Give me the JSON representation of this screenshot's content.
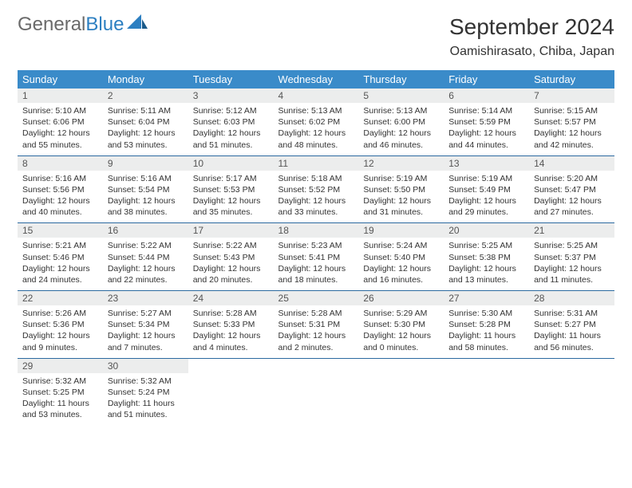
{
  "logo": {
    "word1": "General",
    "word2": "Blue"
  },
  "title": "September 2024",
  "location": "Oamishirasato, Chiba, Japan",
  "colors": {
    "header_bg": "#3a8bc9",
    "header_text": "#ffffff",
    "daynum_bg": "#eceded",
    "border": "#2c6aa0",
    "logo_gray": "#6a6a6a",
    "logo_blue": "#2c7fc1"
  },
  "weekdays": [
    "Sunday",
    "Monday",
    "Tuesday",
    "Wednesday",
    "Thursday",
    "Friday",
    "Saturday"
  ],
  "weeks": [
    [
      {
        "n": "1",
        "sr": "Sunrise: 5:10 AM",
        "ss": "Sunset: 6:06 PM",
        "dl": "Daylight: 12 hours and 55 minutes."
      },
      {
        "n": "2",
        "sr": "Sunrise: 5:11 AM",
        "ss": "Sunset: 6:04 PM",
        "dl": "Daylight: 12 hours and 53 minutes."
      },
      {
        "n": "3",
        "sr": "Sunrise: 5:12 AM",
        "ss": "Sunset: 6:03 PM",
        "dl": "Daylight: 12 hours and 51 minutes."
      },
      {
        "n": "4",
        "sr": "Sunrise: 5:13 AM",
        "ss": "Sunset: 6:02 PM",
        "dl": "Daylight: 12 hours and 48 minutes."
      },
      {
        "n": "5",
        "sr": "Sunrise: 5:13 AM",
        "ss": "Sunset: 6:00 PM",
        "dl": "Daylight: 12 hours and 46 minutes."
      },
      {
        "n": "6",
        "sr": "Sunrise: 5:14 AM",
        "ss": "Sunset: 5:59 PM",
        "dl": "Daylight: 12 hours and 44 minutes."
      },
      {
        "n": "7",
        "sr": "Sunrise: 5:15 AM",
        "ss": "Sunset: 5:57 PM",
        "dl": "Daylight: 12 hours and 42 minutes."
      }
    ],
    [
      {
        "n": "8",
        "sr": "Sunrise: 5:16 AM",
        "ss": "Sunset: 5:56 PM",
        "dl": "Daylight: 12 hours and 40 minutes."
      },
      {
        "n": "9",
        "sr": "Sunrise: 5:16 AM",
        "ss": "Sunset: 5:54 PM",
        "dl": "Daylight: 12 hours and 38 minutes."
      },
      {
        "n": "10",
        "sr": "Sunrise: 5:17 AM",
        "ss": "Sunset: 5:53 PM",
        "dl": "Daylight: 12 hours and 35 minutes."
      },
      {
        "n": "11",
        "sr": "Sunrise: 5:18 AM",
        "ss": "Sunset: 5:52 PM",
        "dl": "Daylight: 12 hours and 33 minutes."
      },
      {
        "n": "12",
        "sr": "Sunrise: 5:19 AM",
        "ss": "Sunset: 5:50 PM",
        "dl": "Daylight: 12 hours and 31 minutes."
      },
      {
        "n": "13",
        "sr": "Sunrise: 5:19 AM",
        "ss": "Sunset: 5:49 PM",
        "dl": "Daylight: 12 hours and 29 minutes."
      },
      {
        "n": "14",
        "sr": "Sunrise: 5:20 AM",
        "ss": "Sunset: 5:47 PM",
        "dl": "Daylight: 12 hours and 27 minutes."
      }
    ],
    [
      {
        "n": "15",
        "sr": "Sunrise: 5:21 AM",
        "ss": "Sunset: 5:46 PM",
        "dl": "Daylight: 12 hours and 24 minutes."
      },
      {
        "n": "16",
        "sr": "Sunrise: 5:22 AM",
        "ss": "Sunset: 5:44 PM",
        "dl": "Daylight: 12 hours and 22 minutes."
      },
      {
        "n": "17",
        "sr": "Sunrise: 5:22 AM",
        "ss": "Sunset: 5:43 PM",
        "dl": "Daylight: 12 hours and 20 minutes."
      },
      {
        "n": "18",
        "sr": "Sunrise: 5:23 AM",
        "ss": "Sunset: 5:41 PM",
        "dl": "Daylight: 12 hours and 18 minutes."
      },
      {
        "n": "19",
        "sr": "Sunrise: 5:24 AM",
        "ss": "Sunset: 5:40 PM",
        "dl": "Daylight: 12 hours and 16 minutes."
      },
      {
        "n": "20",
        "sr": "Sunrise: 5:25 AM",
        "ss": "Sunset: 5:38 PM",
        "dl": "Daylight: 12 hours and 13 minutes."
      },
      {
        "n": "21",
        "sr": "Sunrise: 5:25 AM",
        "ss": "Sunset: 5:37 PM",
        "dl": "Daylight: 12 hours and 11 minutes."
      }
    ],
    [
      {
        "n": "22",
        "sr": "Sunrise: 5:26 AM",
        "ss": "Sunset: 5:36 PM",
        "dl": "Daylight: 12 hours and 9 minutes."
      },
      {
        "n": "23",
        "sr": "Sunrise: 5:27 AM",
        "ss": "Sunset: 5:34 PM",
        "dl": "Daylight: 12 hours and 7 minutes."
      },
      {
        "n": "24",
        "sr": "Sunrise: 5:28 AM",
        "ss": "Sunset: 5:33 PM",
        "dl": "Daylight: 12 hours and 4 minutes."
      },
      {
        "n": "25",
        "sr": "Sunrise: 5:28 AM",
        "ss": "Sunset: 5:31 PM",
        "dl": "Daylight: 12 hours and 2 minutes."
      },
      {
        "n": "26",
        "sr": "Sunrise: 5:29 AM",
        "ss": "Sunset: 5:30 PM",
        "dl": "Daylight: 12 hours and 0 minutes."
      },
      {
        "n": "27",
        "sr": "Sunrise: 5:30 AM",
        "ss": "Sunset: 5:28 PM",
        "dl": "Daylight: 11 hours and 58 minutes."
      },
      {
        "n": "28",
        "sr": "Sunrise: 5:31 AM",
        "ss": "Sunset: 5:27 PM",
        "dl": "Daylight: 11 hours and 56 minutes."
      }
    ],
    [
      {
        "n": "29",
        "sr": "Sunrise: 5:32 AM",
        "ss": "Sunset: 5:25 PM",
        "dl": "Daylight: 11 hours and 53 minutes."
      },
      {
        "n": "30",
        "sr": "Sunrise: 5:32 AM",
        "ss": "Sunset: 5:24 PM",
        "dl": "Daylight: 11 hours and 51 minutes."
      },
      null,
      null,
      null,
      null,
      null
    ]
  ]
}
